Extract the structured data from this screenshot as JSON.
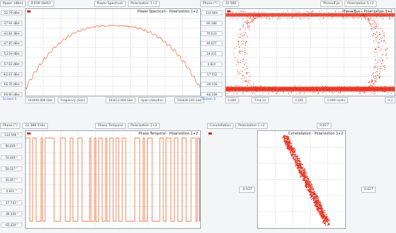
{
  "screen1": {
    "toolbar": {
      "value_box": "Power (dBm)",
      "value": "0.039 (8e0/•",
      "title": "Power Spectrum",
      "polarization": "Polarization 1+2"
    },
    "plot_title": "Power Spectrum - Polarization 1+2",
    "y_ticks": [
      "-32.79 dBm",
      "-37.94 dBm",
      "-42.84 dBm",
      "-47.85 dBm",
      "-53.59 dBm",
      "-57.82 dBm",
      "-62.61 dBm",
      "-66.35 dBm",
      "-69.90 dBm"
    ],
    "x_axis": [
      "193400.600 GHz",
      "Frequency (GHz)",
      "193412.600 GHz",
      "Span (GHz/div)",
      "193428.200 GHz"
    ],
    "label": "Screen 1"
  },
  "screen2": {
    "toolbar": {
      "value_box": "Phase (°)",
      "value": "22.586",
      "title": "Phase/Eye",
      "polarization": "Polarization 1+2"
    },
    "plot_title": "Phase/Eye - Polarization 1+2",
    "y_ticks": [
      "114.664",
      "90.188",
      "70.633",
      "46.027",
      "24.431",
      "4.824",
      "-17.552",
      "-39.159",
      "-60.339"
    ],
    "x_axis": [
      "0.000",
      "Time (s)",
      "0.001",
      "0.009 ns/div",
      "0.3"
    ],
    "label": "Screen 2"
  },
  "screen3": {
    "toolbar": {
      "value_box": "Phase (°)",
      "value": "22.388 Y/div",
      "title": "Phase Temporal",
      "polarization": "Polarization 1+2"
    },
    "plot_title": "Phase Temporal - Polarization 1+2",
    "y_ticks": [
      "134.548 °",
      "98.839 °",
      "78.400 °",
      "58.037 °",
      "34.857 °",
      "4.841 °",
      "-17.743 °",
      "-38.108 °",
      "-65.329 °"
    ]
  },
  "screen4": {
    "toolbar": {
      "value_box": "Constellation",
      "polarization": "Polarization 1+2",
      "value": "0.027"
    },
    "plot_title": "Constellation - Polarization 1+2",
    "left_label": "-0.027",
    "right_label": "0.027"
  },
  "colors": {
    "trace": "#e8321f",
    "trace_light": "#f07a4a",
    "grid": "#c8ccd2"
  }
}
